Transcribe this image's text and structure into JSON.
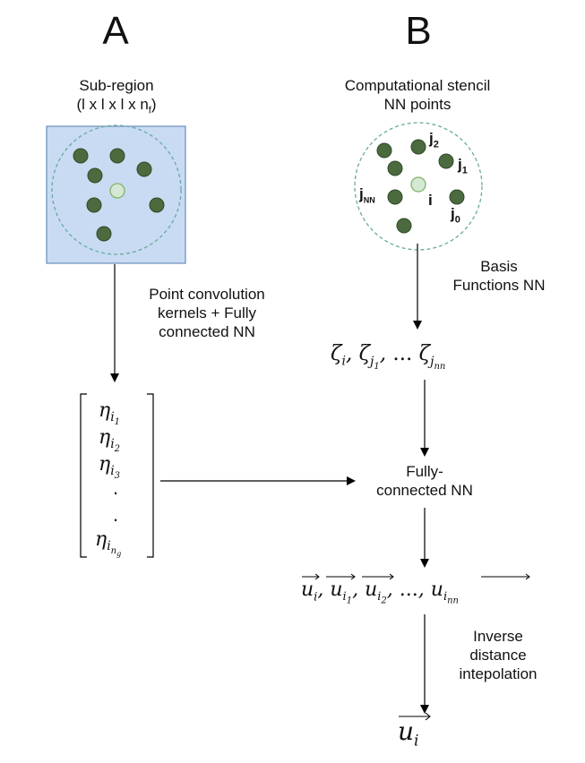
{
  "panel_a": {
    "letter": "A",
    "title_line1": "Sub-region",
    "title_line2_prefix": "(l x l x l x n",
    "title_line2_sub": "f",
    "title_line2_suffix": ")",
    "arrow_label_lines": [
      "Point convolution",
      "kernels + Fully",
      "connected NN"
    ],
    "vector_entries": [
      {
        "base": "η",
        "sub": "i",
        "subsub": "1"
      },
      {
        "base": "η",
        "sub": "i",
        "subsub": "2"
      },
      {
        "base": "η",
        "sub": "i",
        "subsub": "3"
      },
      {
        "dot": "."
      },
      {
        "dot": "."
      },
      {
        "base": "η",
        "sub": "i",
        "subsub": "n",
        "subsubsub": "g"
      }
    ]
  },
  "panel_b": {
    "letter": "B",
    "title_line1": "Computational stencil",
    "title_line2": "NN points",
    "stencil_labels": {
      "j2": {
        "base": "j",
        "sub": "2"
      },
      "j1": {
        "base": "j",
        "sub": "1"
      },
      "jnn": {
        "base": "j",
        "sub": "NN"
      },
      "i": {
        "base": "i"
      },
      "j0": {
        "base": "j",
        "sub": "0"
      }
    },
    "basis_label_lines": [
      "Basis",
      "Functions NN"
    ],
    "zeta_expr": {
      "base": "ζ",
      "i": "i",
      "j": "j",
      "one": "1",
      "dots": "...",
      "nn": "nn"
    },
    "fc_label_lines": [
      "Fully-",
      "connected NN"
    ],
    "u_expr": {
      "base": "u",
      "i": "i",
      "one": "1",
      "two": "2",
      "dots": "...",
      "nn": "nn"
    },
    "idw_label_lines": [
      "Inverse",
      "distance",
      "intepolation"
    ],
    "u_final": {
      "base": "u",
      "sub": "i"
    }
  },
  "colors": {
    "box_fill": "#c9dbf2",
    "box_stroke": "#6c8ebf",
    "circle_stroke": "#67ab9f",
    "dot_fill": "#4b6b3f",
    "dot_stroke": "#2f4a28",
    "center_fill": "#d5e8d4",
    "center_stroke": "#82b366"
  }
}
